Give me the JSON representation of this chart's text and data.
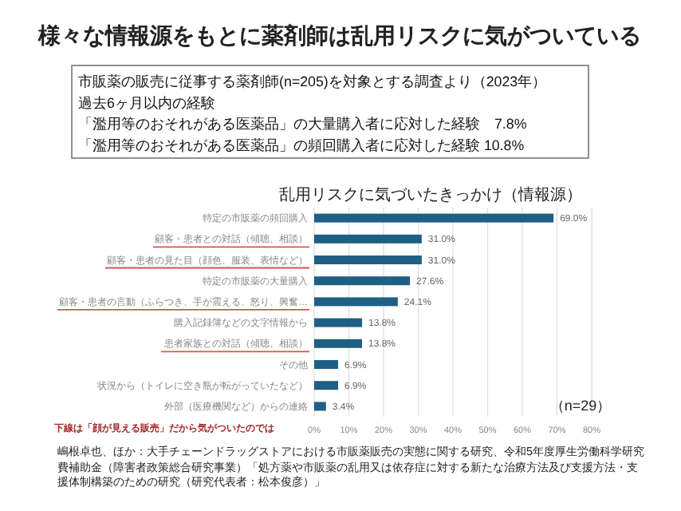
{
  "chart_data": {
    "type": "bar",
    "orientation": "horizontal",
    "title": "様々な情報源をもとに薬剤師は乱用リスクに気がついている",
    "subtitle": "乱用リスクに気づいたきっかけ（情報源）",
    "categories": [
      "特定の市販薬の頻回購入",
      "顧客・患者との対話（傾聴、相談）",
      "顧客・患者の見た目（顔色、服装、表情など）",
      "特定の市販薬の大量購入",
      "顧客・患者の言動（ふらつき、手が震える、怒り、興奮…",
      "購入記録簿などの文字情報から",
      "患者家族との対話（傾聴、相談）",
      "その他",
      "状況から（トイレに空き瓶が転がっていたなど）",
      "外部（医療機関など）からの連絡"
    ],
    "values": [
      69.0,
      31.0,
      31.0,
      27.6,
      24.1,
      13.8,
      13.8,
      6.9,
      6.9,
      3.4
    ],
    "value_labels": [
      "69.0%",
      "31.0%",
      "31.0%",
      "27.6%",
      "24.1%",
      "13.8%",
      "13.8%",
      "6.9%",
      "6.9%",
      "3.4%"
    ],
    "color": "#1f5f85",
    "xlim": [
      0,
      80
    ],
    "xticks": [
      {
        "value": 0,
        "label": "0%"
      },
      {
        "value": 10,
        "label": "10%"
      },
      {
        "value": 20,
        "label": "20%"
      },
      {
        "value": 30,
        "label": "30%"
      },
      {
        "value": 40,
        "label": "40%"
      },
      {
        "value": 50,
        "label": "50%"
      },
      {
        "value": 60,
        "label": "60%"
      },
      {
        "value": 70,
        "label": "70%"
      },
      {
        "value": 80,
        "label": "80%"
      }
    ],
    "grid": "x",
    "annotations": [
      "市販薬の販売に従事する薬剤師(n=205)を対象とする調査より（2023年）",
      "過去6ヶ月以内の経験",
      "「濫用等のおそれがある医薬品」の大量購入者に応対した経験　7.8%",
      "「濫用等のおそれがある医薬品」の頻回購入者に応対した経験 10.8%",
      "（n=29）",
      "下線は「顔が見える販売」だから気がついたのでは",
      "嶋根卓也、ほか：大手チェーンドラッグストアにおける市販薬販売の実態に関する研究、令和5年度厚生労働科学研究費補助金（障害者政策総合研究事業）「処方薬や市販薬の乱用又は依存症に対する新たな治療方法及び支援方法・支援体制構築のための研究（研究代表者：松本俊彦）」"
    ]
  }
}
